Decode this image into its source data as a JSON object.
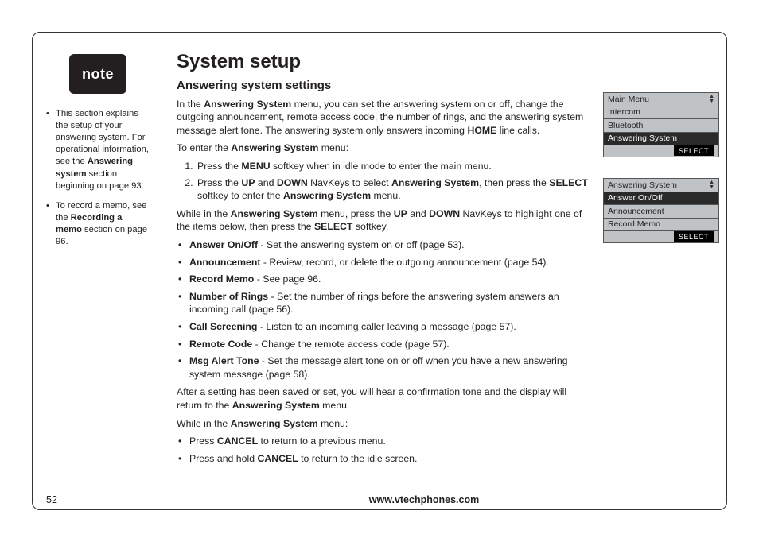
{
  "page": {
    "number": "52",
    "url": "www.vtechphones.com"
  },
  "note": {
    "badge": "note",
    "items": [
      {
        "pre": "This section explains the setup of your answering system. For operational information, see the ",
        "bold": "Answering system",
        "post": " section beginning on page 93."
      },
      {
        "pre": "To record a memo, see the ",
        "bold": "Recording a memo",
        "post": " section on page 96."
      }
    ]
  },
  "main": {
    "h1": "System setup",
    "h2": "Answering system settings",
    "intro": {
      "pre": "In the ",
      "b1": "Answering System",
      "mid1": " menu, you can set the answering system on or off, change the outgoing announcement, remote access code, the number of rings, and the answering system message alert tone. The answering system only answers incoming ",
      "b2": "HOME",
      "post": " line calls."
    },
    "enter_line": {
      "pre": "To enter the ",
      "b": "Answering System",
      "post": " menu:"
    },
    "steps": [
      {
        "pre": "Press the ",
        "b1": "MENU",
        "post": " softkey when in idle mode to enter the main menu."
      },
      {
        "pre": "Press the ",
        "b1": "UP",
        "mid1": " and ",
        "b2": "DOWN",
        "mid2": " NavKeys to select ",
        "b3": "Answering System",
        "mid3": ", then press the ",
        "b4": "SELECT",
        "mid4": " softkey to enter the ",
        "b5": "Answering System",
        "post": " menu."
      }
    ],
    "while": {
      "pre": "While in the ",
      "b1": "Answering System",
      "mid1": " menu, press the ",
      "b2": "UP",
      "mid2": " and ",
      "b3": "DOWN",
      "mid3": " NavKeys to highlight one of the items below, then press the ",
      "b4": "SELECT",
      "post": " softkey."
    },
    "options": [
      {
        "name": "Answer On/Off",
        "desc": " - Set the answering system on or off (page 53)."
      },
      {
        "name": "Announcement",
        "desc": " - Review, record, or delete the outgoing announcement (page 54)."
      },
      {
        "name": "Record Memo",
        "desc": " - See page 96."
      },
      {
        "name": "Number of Rings",
        "desc": " - Set the number of rings before the answering system answers an incoming call (page 56)."
      },
      {
        "name": "Call Screening",
        "desc": " - Listen to an incoming caller leaving a message (page 57)."
      },
      {
        "name": "Remote Code",
        "desc": " - Change the remote access code (page 57)."
      },
      {
        "name": "Msg Alert Tone",
        "desc": " - Set the message alert tone on or off when you have a new answering system message (page 58)."
      }
    ],
    "after": {
      "pre": "After a setting has been saved or set, you will hear a confirmation tone and the display will return to the ",
      "b": "Answering System",
      "post": " menu."
    },
    "while2": {
      "pre": "While in the ",
      "b": "Answering System",
      "post": " menu:"
    },
    "tail": [
      {
        "pre": "Press ",
        "b": "CANCEL",
        "post": " to return to a previous menu."
      },
      {
        "upre": "Press and hold",
        "mid": " ",
        "b": "CANCEL",
        "post": " to return to the idle screen."
      }
    ]
  },
  "lcd1": {
    "title": "Main Menu",
    "rows": [
      "Intercom",
      "Bluetooth"
    ],
    "selected": "Answering System",
    "softkey": "SELECT"
  },
  "lcd2": {
    "title": "Answering System",
    "selected": "Answer On/Off",
    "rows": [
      "Announcement",
      "Record Memo"
    ],
    "softkey": "SELECT"
  },
  "colors": {
    "text": "#231f20",
    "lcd_bg": "#c0c3c5",
    "lcd_sel_bg": "#2a2a2a",
    "lcd_border": "#555555"
  }
}
